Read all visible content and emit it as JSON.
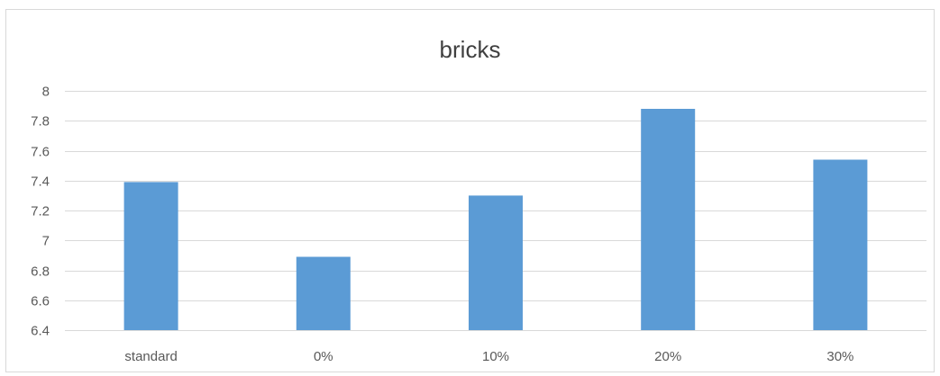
{
  "chart_data": {
    "type": "bar",
    "title": "bricks",
    "xlabel": "",
    "ylabel": "",
    "categories": [
      "standard",
      "0%",
      "10%",
      "20%",
      "30%"
    ],
    "values": [
      7.39,
      6.89,
      7.3,
      7.88,
      7.54
    ],
    "ylim": [
      6.4,
      8
    ],
    "yticks": [
      6.4,
      6.6,
      6.8,
      7,
      7.2,
      7.4,
      7.6,
      7.8,
      8
    ],
    "ytick_labels": [
      "6.4",
      "6.6",
      "6.8",
      "7",
      "7.2",
      "7.4",
      "7.6",
      "7.8",
      "8"
    ],
    "grid": true,
    "legend": "none",
    "bar_color": "#5b9bd5",
    "grid_color": "#d9d9d9"
  }
}
